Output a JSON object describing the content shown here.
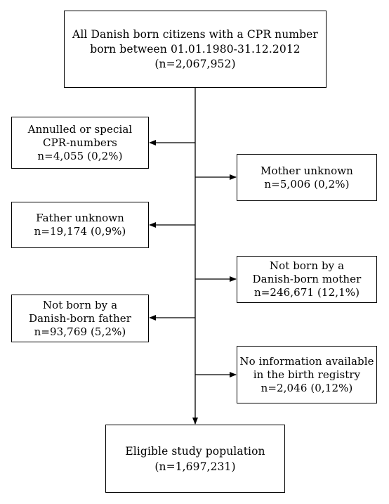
{
  "source_box": {
    "line1": "All Danish born citizens with a CPR number",
    "line2": "born between 01.01.1980-31.12.2012",
    "line3": "(n=2,067,952)"
  },
  "exclusions": {
    "annulled": {
      "line1": "Annulled or special",
      "line2": "CPR-numbers",
      "line3": "n=4,055 (0,2%)"
    },
    "mother_unknown": {
      "line1": "Mother unknown",
      "line2": "n=5,006 (0,2%)"
    },
    "father_unknown": {
      "line1": "Father unknown",
      "line2": "n=19,174 (0,9%)"
    },
    "not_born_mother": {
      "line1": "Not born by a",
      "line2": "Danish-born mother",
      "line3": "n=246,671 (12,1%)"
    },
    "not_born_father": {
      "line1": "Not born by a",
      "line2": "Danish-born father",
      "line3": "n=93,769 (5,2%)"
    },
    "no_info": {
      "line1": "No information available",
      "line2": "in the birth registry",
      "line3": "n=2,046 (0,12%)"
    }
  },
  "result_box": {
    "line1": "Eligible study population",
    "line2": "(n=1,697,231)"
  }
}
